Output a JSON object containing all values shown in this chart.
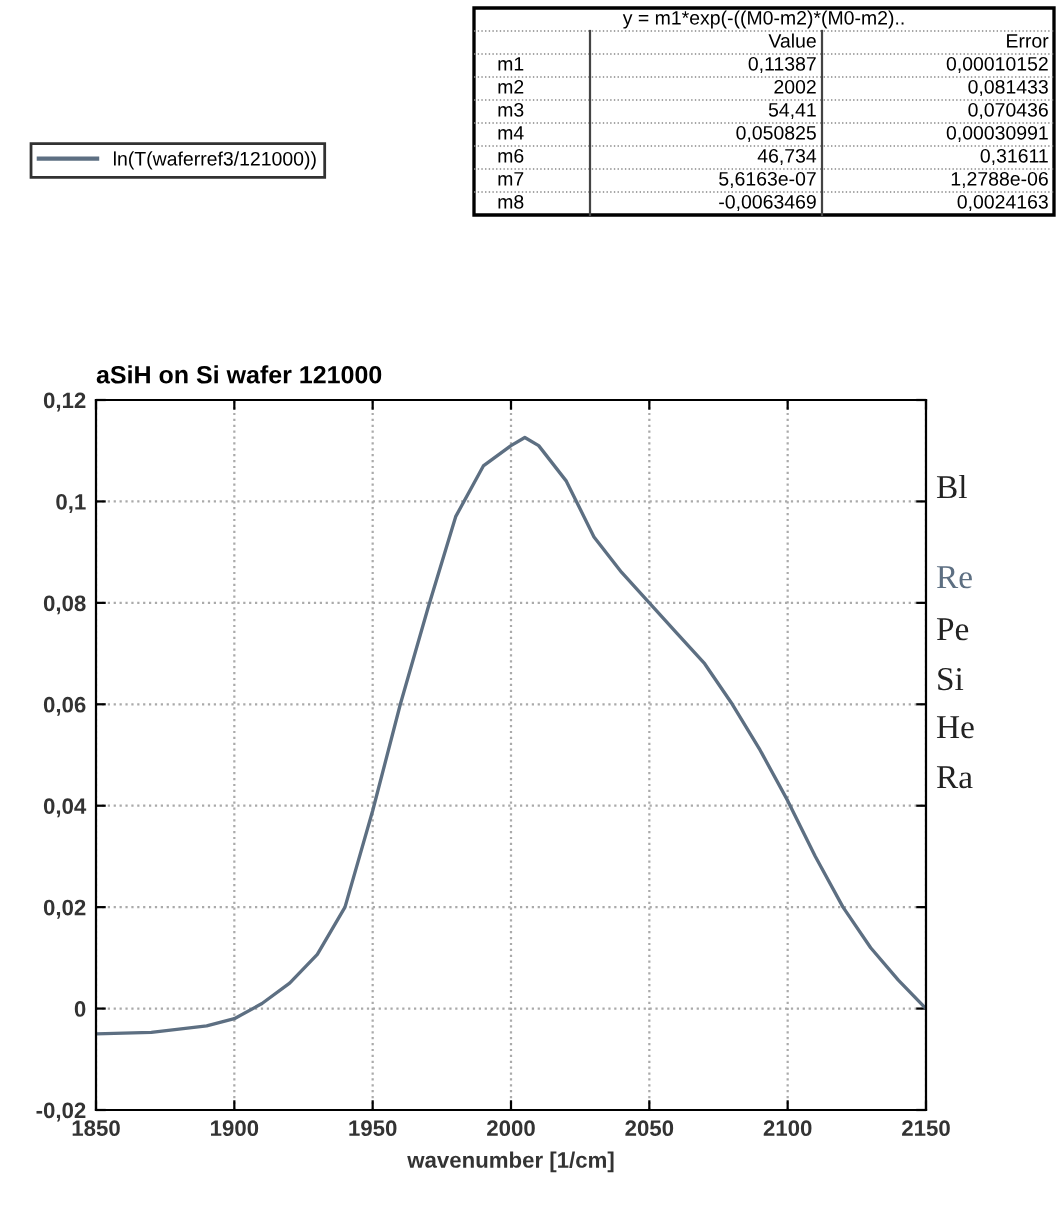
{
  "chart_data": {
    "type": "line",
    "title": "aSiH on Si wafer 121000",
    "xlabel": "wavenumber [1/cm]",
    "x": [
      1850,
      1870,
      1890,
      1900,
      1910,
      1920,
      1930,
      1940,
      1950,
      1960,
      1970,
      1980,
      1990,
      2000,
      2005,
      2010,
      2020,
      2030,
      2040,
      2050,
      2060,
      2070,
      2080,
      2090,
      2100,
      2110,
      2120,
      2130,
      2140,
      2150
    ],
    "series": [
      {
        "name": "ln(T(waferref3/121000))",
        "color": "#5d6f82",
        "values": [
          -0.005,
          -0.0047,
          -0.0034,
          -0.002,
          0.001,
          0.005,
          0.0107,
          0.02,
          0.039,
          0.06,
          0.079,
          0.097,
          0.107,
          0.111,
          0.1126,
          0.111,
          0.104,
          0.093,
          0.086,
          0.08,
          0.074,
          0.068,
          0.06,
          0.051,
          0.041,
          0.03,
          0.02,
          0.012,
          0.0056,
          0.0
        ]
      }
    ],
    "xlim": [
      1850,
      2150
    ],
    "xticks": [
      1850,
      1900,
      1950,
      2000,
      2050,
      2100,
      2150
    ],
    "ylim": [
      -0.02,
      0.12
    ],
    "yticks": [
      {
        "value": -0.02,
        "label": "-0,02"
      },
      0,
      {
        "value": 0.02,
        "label": "0,02"
      },
      {
        "value": 0.04,
        "label": "0,04"
      },
      {
        "value": 0.06,
        "label": "0,06"
      },
      {
        "value": 0.08,
        "label": "0,08"
      },
      {
        "value": 0.1,
        "label": "0,1"
      },
      {
        "value": 0.12,
        "label": "0,12"
      }
    ],
    "grid": true,
    "legend": "top left",
    "marker": "none",
    "line_style": "solid",
    "annotations": [
      "y = m1*exp(-((M0-m2)*(M0-m2)..",
      "Value",
      "Error",
      "m1",
      "0,11387",
      "0,00010152",
      "m2",
      "2002",
      "0,081433",
      "m3",
      "54,41",
      "0,070436",
      "m4",
      "0,050825",
      "0,00030991",
      "m6",
      "46,734",
      "0,31611",
      "m7",
      "5,6163e-07",
      "1,2788e-06",
      "m8",
      "-0,0063469",
      "0,0024163",
      "Bl",
      "Re",
      "Pe",
      "Si",
      "He",
      "Ra"
    ]
  }
}
